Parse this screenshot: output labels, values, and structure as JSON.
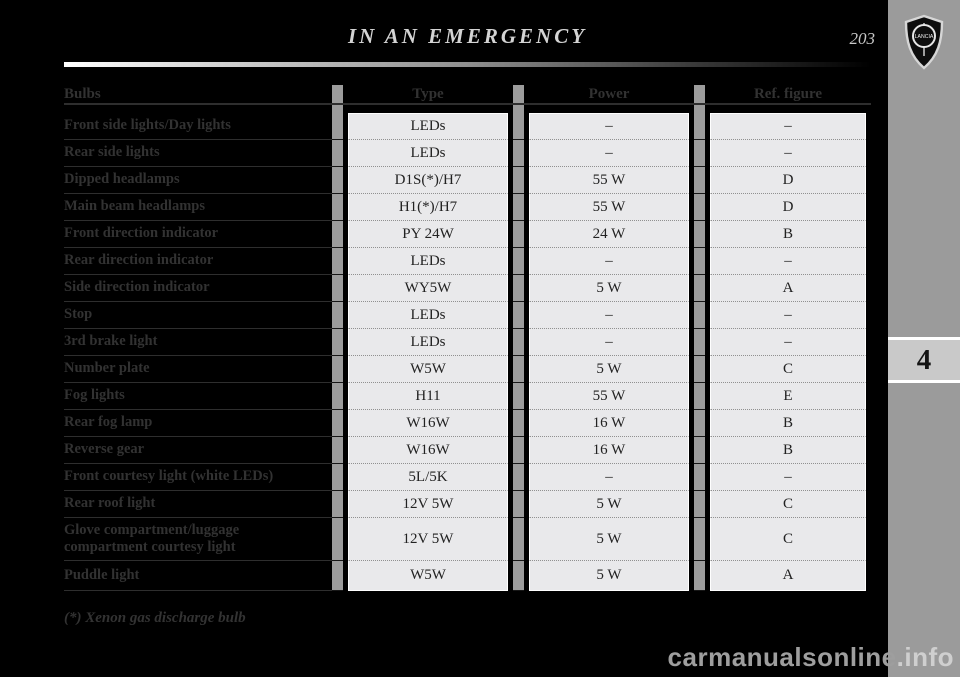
{
  "header": {
    "title": "IN AN EMERGENCY",
    "page_number": "203"
  },
  "sidebar": {
    "chapter_number": "4",
    "logo_text": "LANCIA"
  },
  "table": {
    "headers": [
      "Bulbs",
      "Type",
      "Power",
      "Ref. figure"
    ],
    "rows": [
      {
        "bulb": "Front side lights/Day lights",
        "type": "LEDs",
        "power": "–",
        "ref": "–"
      },
      {
        "bulb": "Rear side lights",
        "type": "LEDs",
        "power": "–",
        "ref": "–"
      },
      {
        "bulb": "Dipped headlamps",
        "type": "D1S(*)/H7",
        "power": "55 W",
        "ref": "D"
      },
      {
        "bulb": "Main beam headlamps",
        "type": "H1(*)/H7",
        "power": "55 W",
        "ref": "D"
      },
      {
        "bulb": "Front direction indicator",
        "type": "PY 24W",
        "power": "24 W",
        "ref": "B"
      },
      {
        "bulb": "Rear direction indicator",
        "type": "LEDs",
        "power": "–",
        "ref": "–"
      },
      {
        "bulb": "Side direction indicator",
        "type": "WY5W",
        "power": "5 W",
        "ref": "A"
      },
      {
        "bulb": "Stop",
        "type": "LEDs",
        "power": "–",
        "ref": "–"
      },
      {
        "bulb": "3rd brake light",
        "type": "LEDs",
        "power": "–",
        "ref": "–"
      },
      {
        "bulb": "Number plate",
        "type": "W5W",
        "power": "5 W",
        "ref": "C"
      },
      {
        "bulb": "Fog lights",
        "type": "H11",
        "power": "55 W",
        "ref": "E"
      },
      {
        "bulb": "Rear fog lamp",
        "type": "W16W",
        "power": "16 W",
        "ref": "B"
      },
      {
        "bulb": "Reverse gear",
        "type": "W16W",
        "power": "16 W",
        "ref": "B"
      },
      {
        "bulb": "Front courtesy light (white LEDs)",
        "type": "5L/5K",
        "power": "–",
        "ref": "–"
      },
      {
        "bulb": "Rear roof light",
        "type": "12V 5W",
        "power": "5 W",
        "ref": "C"
      },
      {
        "bulb": "Glove compartment/luggage compartment courtesy light",
        "type": "12V 5W",
        "power": "5 W",
        "ref": "C",
        "tall": true
      },
      {
        "bulb": "Puddle light",
        "type": "W5W",
        "power": "5 W",
        "ref": "A"
      }
    ]
  },
  "footnote": "(*) Xenon gas discharge bulb",
  "watermark": {
    "part1": "carmanualsonline",
    "part2": ".info"
  },
  "colors": {
    "page_bg": "#000000",
    "cell_bg": "#e9e9eb",
    "column_bar": "#9c9c9c",
    "sidebar_bg": "#9b9b9b",
    "chapter_tab_bg": "#c9c9c9",
    "dark_text": "#323232",
    "title_text": "#d4d4d4"
  }
}
